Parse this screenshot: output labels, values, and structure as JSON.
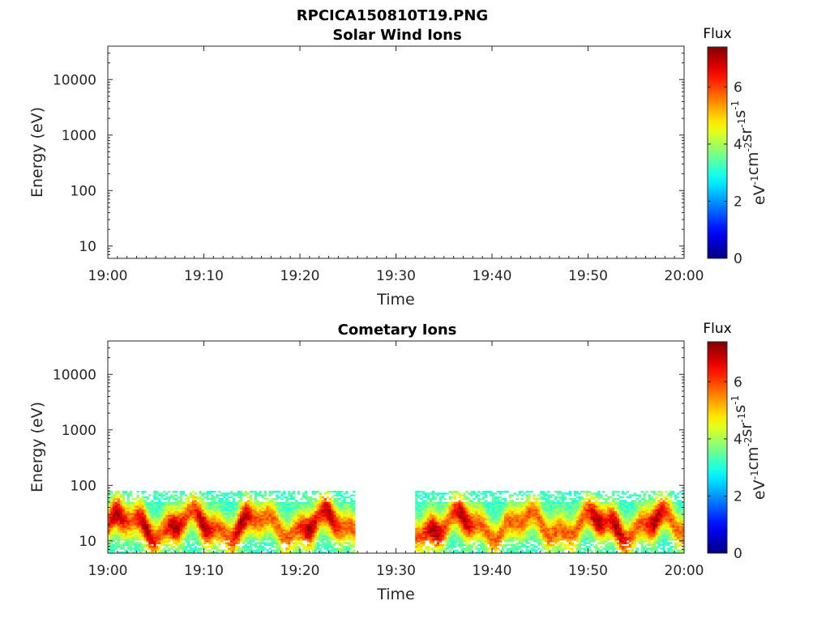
{
  "figure_title": "RPCICA150810T19.PNG",
  "colors": {
    "colormap": [
      "#00008f",
      "#0000ff",
      "#00ffff",
      "#ffff00",
      "#ff0000",
      "#800000"
    ],
    "axis": "#262626"
  },
  "chart_data": [
    {
      "type": "heatmap",
      "title": "Solar Wind Ions",
      "xlabel": "Time",
      "ylabel": "Energy (eV)",
      "x_ticks": [
        "19:00",
        "19:10",
        "19:20",
        "19:30",
        "19:40",
        "19:50",
        "20:00"
      ],
      "xlim": [
        "19:00",
        "20:00"
      ],
      "y_scale": "log",
      "y_ticks": [
        "10",
        "100",
        "1000",
        "10000"
      ],
      "ylim": [
        6,
        40000
      ],
      "colorbar": {
        "label": "Flux",
        "units": "eV-1 cm-2 sr-1 s-1",
        "range": [
          0,
          7.4
        ],
        "ticks": [
          "0",
          "2",
          "4",
          "6"
        ]
      },
      "cells": []
    },
    {
      "type": "heatmap",
      "title": "Cometary Ions",
      "xlabel": "Time",
      "ylabel": "Energy (eV)",
      "x_ticks": [
        "19:00",
        "19:10",
        "19:20",
        "19:30",
        "19:40",
        "19:50",
        "20:00"
      ],
      "xlim": [
        "19:00",
        "20:00"
      ],
      "y_scale": "log",
      "y_ticks": [
        "10",
        "100",
        "1000",
        "10000"
      ],
      "ylim": [
        6,
        40000
      ],
      "colorbar": {
        "label": "Flux",
        "units": "eV-1 cm-2 sr-1 s-1",
        "range": [
          0,
          7.4
        ],
        "ticks": [
          "0",
          "2",
          "4",
          "6"
        ]
      },
      "data_gap": [
        "19:25:45",
        "19:32:00"
      ],
      "energy_range_with_counts": [
        6,
        80
      ],
      "peak_flux_times": [
        "19:01",
        "19:04",
        "19:07",
        "19:10",
        "19:14",
        "19:21",
        "19:23",
        "19:34",
        "19:37",
        "19:51",
        "19:53",
        "19:57"
      ],
      "flux_max": 7.4
    }
  ]
}
